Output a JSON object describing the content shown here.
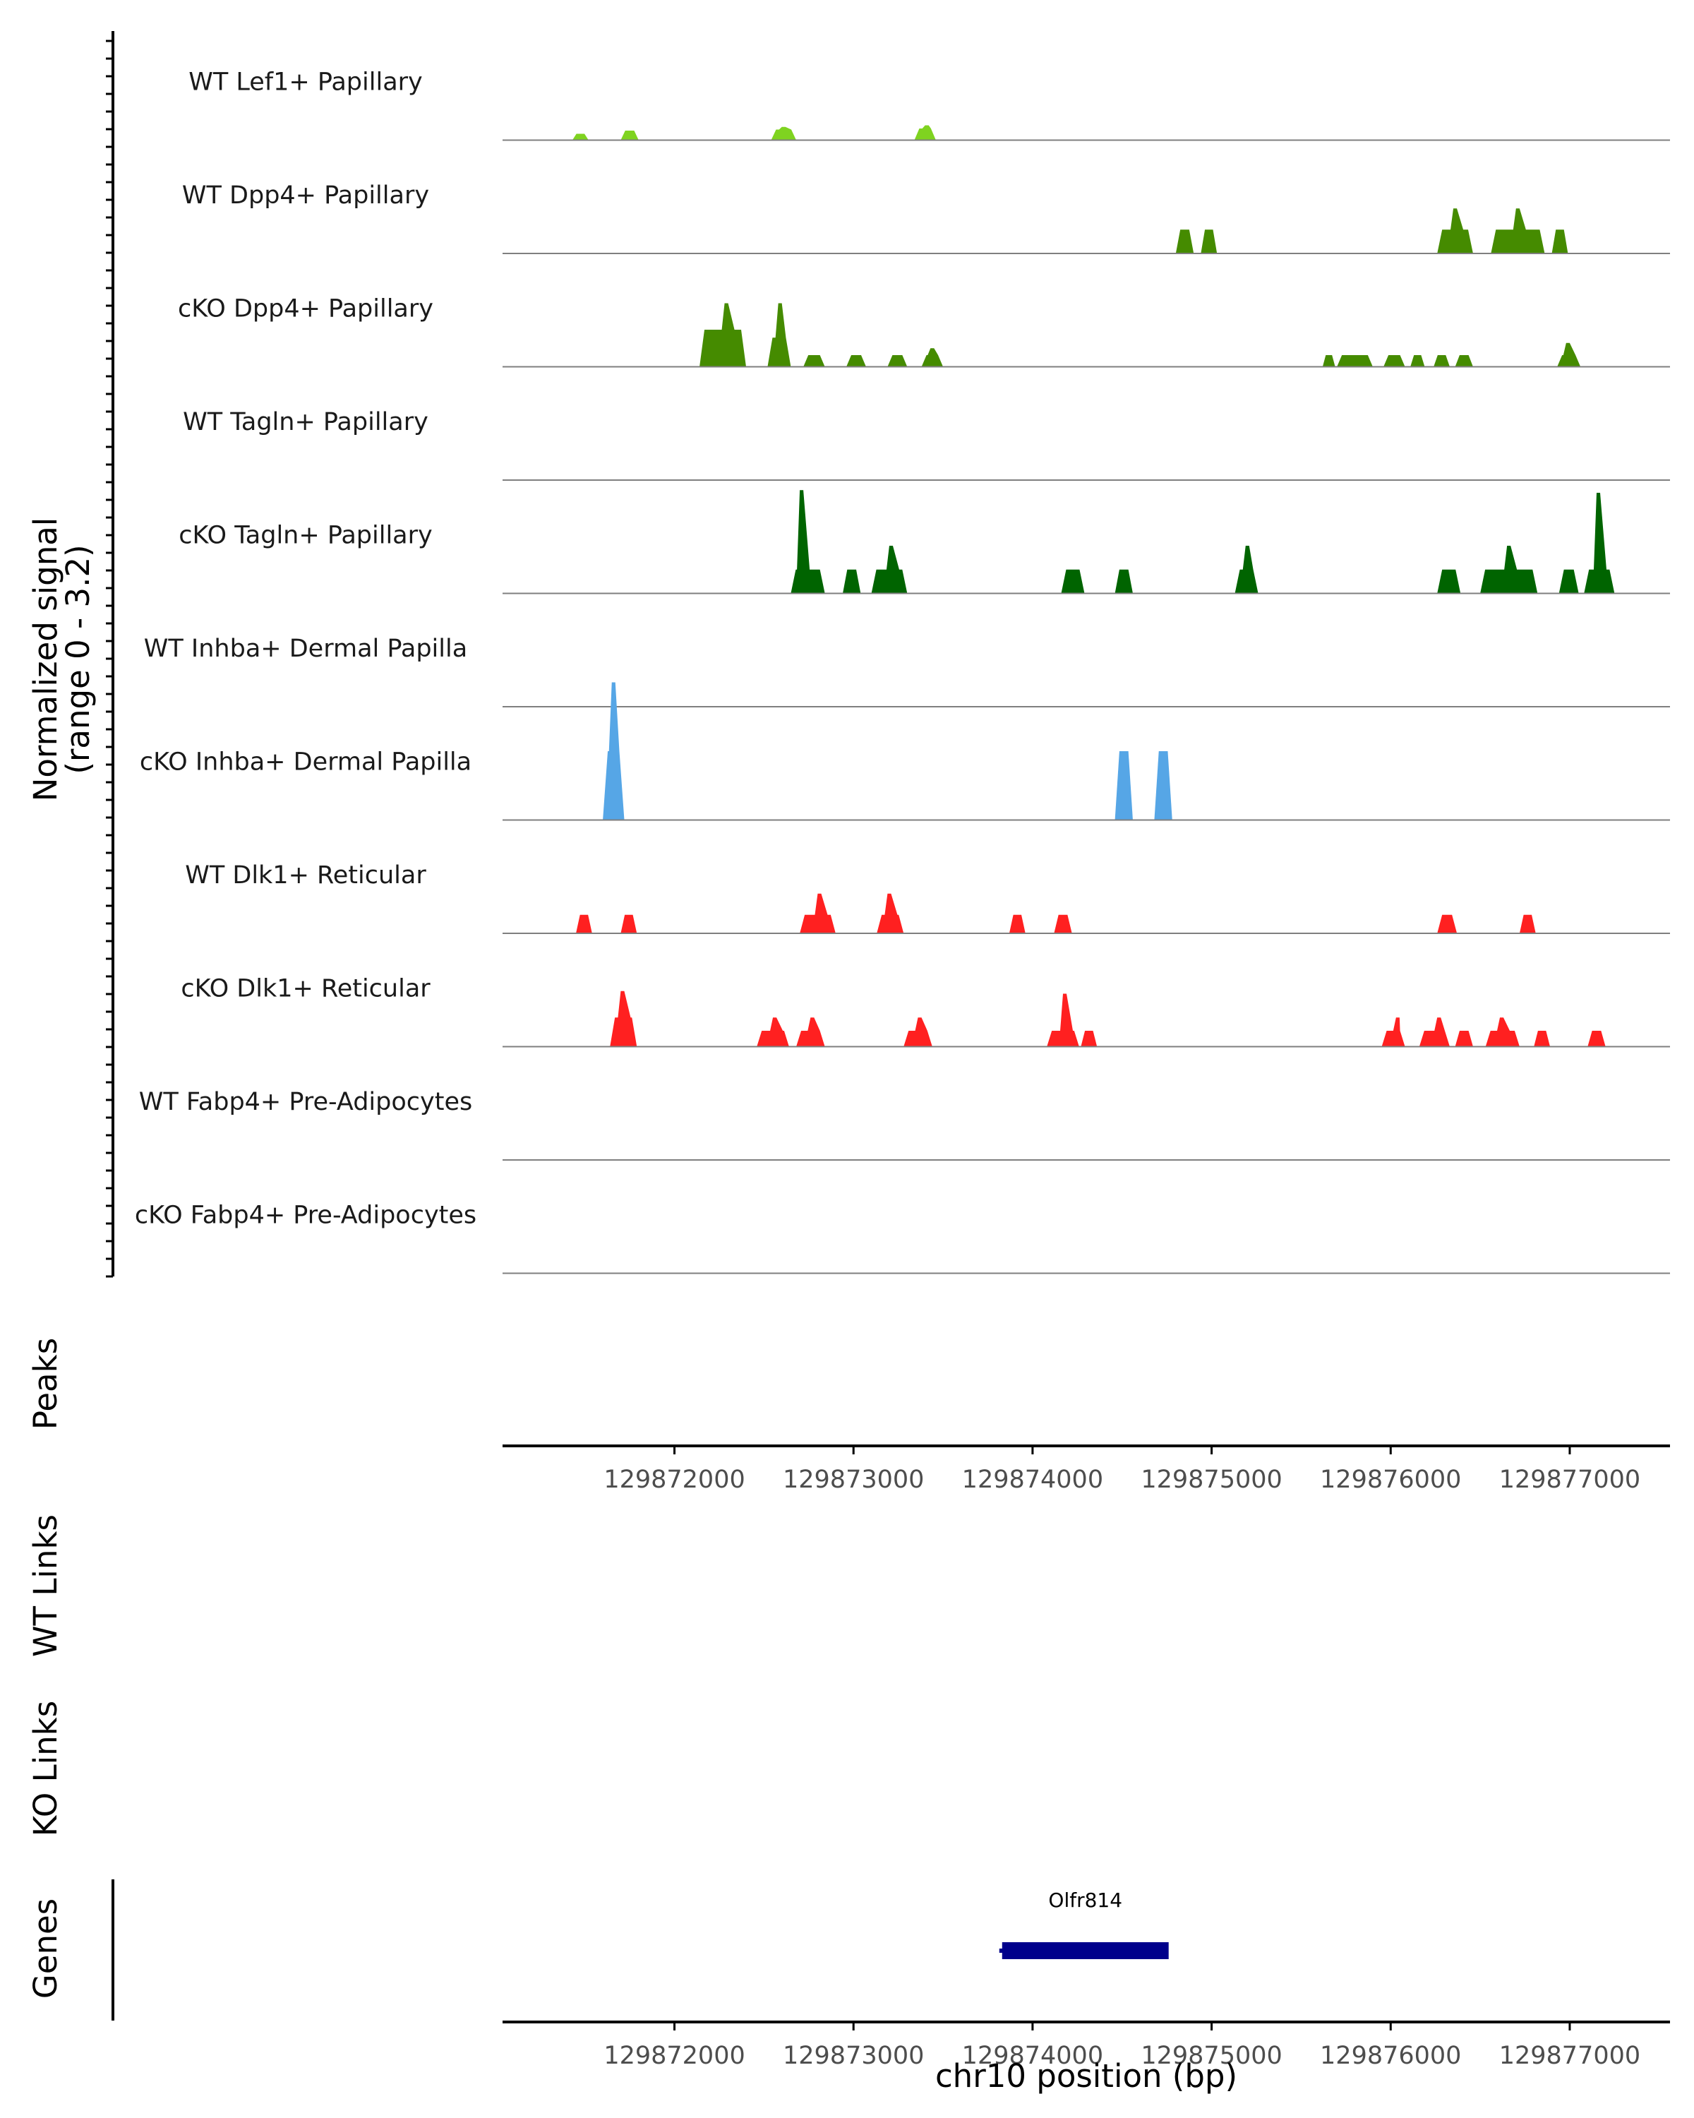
{
  "chart_data": {
    "type": "area",
    "title": "",
    "y_axis_title": "Normalized signal",
    "y_axis_range_label": "(range 0 - 3.2)",
    "ylim": [
      0,
      3.2
    ],
    "xlabel": "chr10 position (bp)",
    "xlim": [
      129871040,
      129877560
    ],
    "x_ticks": [
      129872000,
      129873000,
      129874000,
      129875000,
      129876000,
      129877000
    ],
    "x_tick_labels": [
      "129872000",
      "129873000",
      "129874000",
      "129875000",
      "129876000",
      "129877000"
    ],
    "tracks": [
      {
        "name": "WT Lef1+ Papillary",
        "color": "#7FD320",
        "peaks": [
          [
            129871430,
            129871490,
            129871520,
            0.12,
            0.12
          ],
          [
            129871700,
            129871730,
            129871800,
            0.18,
            0.18
          ],
          [
            129872540,
            129872600,
            129872680,
            0.2,
            0.25
          ],
          [
            129873340,
            129873400,
            129873460,
            0.22,
            0.28
          ]
        ]
      },
      {
        "name": "WT Dpp4+ Papillary",
        "color": "#458B00",
        "peaks": [
          [
            129874800,
            129874850,
            129874900,
            0.45,
            0.45
          ],
          [
            129874940,
            129874980,
            129875030,
            0.45,
            0.45
          ],
          [
            129876260,
            129876350,
            129876460,
            0.45,
            0.85
          ],
          [
            129876560,
            129876700,
            129876860,
            0.45,
            0.85
          ],
          [
            129876900,
            129876940,
            129876990,
            0.45,
            0.45
          ]
        ]
      },
      {
        "name": "cKO Dpp4+ Papillary",
        "color": "#458B00",
        "peaks": [
          [
            129872140,
            129872280,
            129872400,
            0.7,
            1.2
          ],
          [
            129872520,
            129872580,
            129872650,
            0.55,
            1.2
          ],
          [
            129872720,
            129872780,
            129872840,
            0.22,
            0.22
          ],
          [
            129872960,
            129873010,
            129873070,
            0.22,
            0.22
          ],
          [
            129873190,
            129873240,
            129873300,
            0.22,
            0.22
          ],
          [
            129873380,
            129873430,
            129873500,
            0.22,
            0.35
          ],
          [
            129875620,
            129875660,
            129875690,
            0.22,
            0.22
          ],
          [
            129875700,
            129875800,
            129875900,
            0.22,
            0.22
          ],
          [
            129875960,
            129876020,
            129876080,
            0.22,
            0.22
          ],
          [
            129876110,
            129876150,
            129876190,
            0.22,
            0.22
          ],
          [
            129876240,
            129876290,
            129876330,
            0.22,
            0.22
          ],
          [
            129876360,
            129876410,
            129876460,
            0.22,
            0.22
          ],
          [
            129876930,
            129876980,
            129877060,
            0.22,
            0.45
          ]
        ]
      },
      {
        "name": "WT Tagln+ Papillary",
        "color": "#006400",
        "peaks": []
      },
      {
        "name": "cKO Tagln+ Papillary",
        "color": "#006400",
        "peaks": [
          [
            129872650,
            129872700,
            129872840,
            0.45,
            1.95
          ],
          [
            129872940,
            129872990,
            129873040,
            0.45,
            0.45
          ],
          [
            129873100,
            129873200,
            129873300,
            0.45,
            0.9
          ],
          [
            129874160,
            129874220,
            129874290,
            0.45,
            0.45
          ],
          [
            129874460,
            129874510,
            129874560,
            0.45,
            0.45
          ],
          [
            129875130,
            129875190,
            129875260,
            0.45,
            0.9
          ],
          [
            129876260,
            129876320,
            129876390,
            0.45,
            0.45
          ],
          [
            129876500,
            129876650,
            129876820,
            0.45,
            0.9
          ],
          [
            129876940,
            129876990,
            129877050,
            0.45,
            0.45
          ],
          [
            129877080,
            129877150,
            129877250,
            0.45,
            1.9
          ]
        ]
      },
      {
        "name": "WT Inhba+ Dermal Papilla",
        "color": "#56A6E6",
        "peaks": []
      },
      {
        "name": "cKO Inhba+ Dermal Papilla",
        "color": "#56A6E6",
        "peaks": [
          [
            129871600,
            129871650,
            129871720,
            1.3,
            2.6
          ],
          [
            129874460,
            129874510,
            129874560,
            1.3,
            1.3
          ],
          [
            129874680,
            129874730,
            129874780,
            1.3,
            1.3
          ]
        ]
      },
      {
        "name": "WT Dlk1+ Reticular",
        "color": "#FF2020",
        "peaks": [
          [
            129871450,
            129871490,
            129871540,
            0.35,
            0.35
          ],
          [
            129871700,
            129871740,
            129871790,
            0.35,
            0.35
          ],
          [
            129872700,
            129872800,
            129872900,
            0.35,
            0.75
          ],
          [
            129873130,
            129873190,
            129873280,
            0.35,
            0.75
          ],
          [
            129873870,
            129873920,
            129873960,
            0.35,
            0.35
          ],
          [
            129874120,
            129874170,
            129874220,
            0.35,
            0.35
          ],
          [
            129876260,
            129876320,
            129876370,
            0.35,
            0.35
          ],
          [
            129876720,
            129876760,
            129876810,
            0.35,
            0.35
          ]
        ]
      },
      {
        "name": "cKO Dlk1+ Reticular",
        "color": "#FF2020",
        "peaks": [
          [
            129871640,
            129871700,
            129871790,
            0.55,
            1.05
          ],
          [
            129872460,
            129872550,
            129872640,
            0.3,
            0.55
          ],
          [
            129872680,
            129872760,
            129872840,
            0.3,
            0.55
          ],
          [
            129873280,
            129873360,
            129873440,
            0.3,
            0.55
          ],
          [
            129874080,
            129874170,
            129874260,
            0.3,
            1.0
          ],
          [
            129874270,
            129874310,
            129874360,
            0.3,
            0.3
          ],
          [
            129875950,
            129876030,
            129876080,
            0.3,
            0.55
          ],
          [
            129876160,
            129876260,
            129876330,
            0.3,
            0.55
          ],
          [
            129876360,
            129876410,
            129876460,
            0.3,
            0.3
          ],
          [
            129876530,
            129876610,
            129876720,
            0.3,
            0.55
          ],
          [
            129876800,
            129876850,
            129876890,
            0.3,
            0.3
          ],
          [
            129877100,
            129877150,
            129877200,
            0.3,
            0.3
          ]
        ]
      },
      {
        "name": "WT Fabp4+ Pre-Adipocytes",
        "color": "#E07B00",
        "peaks": []
      },
      {
        "name": "cKO Fabp4+ Pre-Adipocytes",
        "color": "#E07B00",
        "peaks": []
      }
    ],
    "panels": [
      "Peaks",
      "WT Links",
      "KO Links",
      "Genes"
    ],
    "genes": [
      {
        "name": "Olfr814",
        "start": 129873830,
        "end": 129874760,
        "color": "#00008B"
      }
    ]
  }
}
